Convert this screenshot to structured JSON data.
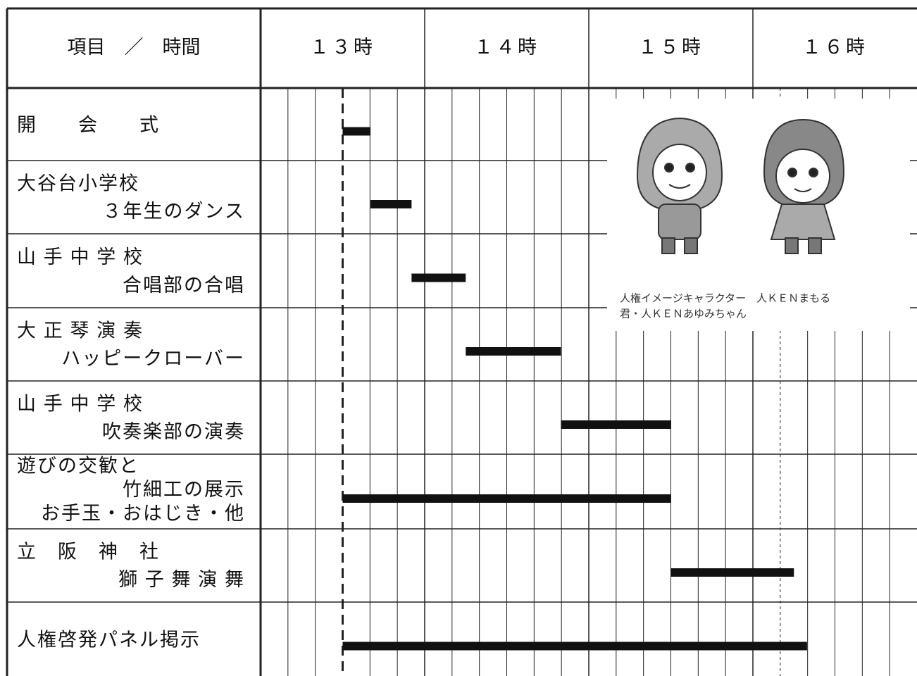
{
  "header": {
    "corner": "項目　／　時間",
    "hours": [
      "１３時",
      "１４時",
      "１５時",
      "１６時"
    ]
  },
  "xlim": [
    13,
    17
  ],
  "rows": [
    {
      "label": [
        "開　　会　　式"
      ],
      "start": 13.5,
      "end": 13.67
    },
    {
      "label": [
        "大谷台小学校",
        "３年生のダンス"
      ],
      "start": 13.67,
      "end": 13.92
    },
    {
      "label": [
        "山 手 中 学 校",
        "合唱部の合唱"
      ],
      "start": 13.92,
      "end": 14.25
    },
    {
      "label": [
        "大 正 琴 演 奏",
        "ハッピークローバー"
      ],
      "start": 14.25,
      "end": 14.83
    },
    {
      "label": [
        "山 手 中 学 校",
        "吹奏楽部の演奏"
      ],
      "start": 14.83,
      "end": 15.5
    },
    {
      "label": [
        "遊びの交歓と",
        "竹細工の展示",
        "お手玉・おはじき・他"
      ],
      "start": 13.5,
      "end": 15.5
    },
    {
      "label": [
        "立　阪　神　社",
        "獅 子 舞 演 舞"
      ],
      "start": 15.5,
      "end": 16.25
    },
    {
      "label": [
        "人権啓発パネル掲示"
      ],
      "start": 13.5,
      "end": 16.33
    }
  ],
  "illustration": {
    "caption": [
      "人権イメージキャラクター　人ＫＥＮまもる",
      "君・人ＫＥＮあゆみちゃん"
    ]
  }
}
